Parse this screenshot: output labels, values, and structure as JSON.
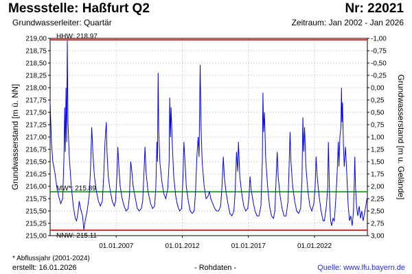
{
  "header": {
    "title": "Messstelle: Haßfurt Q2",
    "nr": "Nr: 22021",
    "subtitle": "Grundwasserleiter: Quartär",
    "period": "Zeitraum: Jan 2002 - Jan 2026"
  },
  "footer": {
    "footnote": "* Abflussjahr (2001-2024)",
    "created": "erstellt:  16.01.2026",
    "rawdata": "- Rohdaten -",
    "source": "Quelle: www.lfu.bayern.de"
  },
  "colors": {
    "series": "#0000ee",
    "hhw": "#e00000",
    "nnw": "#e00000",
    "mw": "#00a000",
    "grid": "#c8c8c8"
  },
  "chart_data": {
    "type": "line",
    "ylabel_left": "Grundwasserstand [m ü. NN]",
    "ylabel_right": "Grundwasserstand [m u. Gelände]",
    "ylim": [
      215.0,
      219.0
    ],
    "yticks": [
      "219,00",
      "218,75",
      "218,50",
      "218,25",
      "218,00",
      "217,75",
      "217,50",
      "217,25",
      "217,00",
      "216,75",
      "216,50",
      "216,25",
      "216,00",
      "215,75",
      "215,50",
      "215,25",
      "215,00"
    ],
    "yticks_right": [
      "-1,00",
      "-0,75",
      "-0,50",
      "-0,25",
      "0,00",
      "0,25",
      "0,50",
      "0,75",
      "1,00",
      "1,25",
      "1,50",
      "1,75",
      "2,00",
      "2,25",
      "2,50",
      "2,75",
      "3,00"
    ],
    "xlim": [
      2002.0,
      2026.0
    ],
    "xticks": [
      {
        "label": "01.01.2007",
        "x": 2007.0
      },
      {
        "label": "01.01.2012",
        "x": 2012.0
      },
      {
        "label": "01.01.2017",
        "x": 2017.0
      },
      {
        "label": "01.01.2022",
        "x": 2022.0
      }
    ],
    "grid": true,
    "reference_lines": [
      {
        "key": "hhw",
        "label": "HHW: 218.97",
        "value": 218.97
      },
      {
        "key": "mw",
        "label": "MW*: 215.89",
        "value": 215.89
      },
      {
        "key": "nnw",
        "label": "NNW: 215.11",
        "value": 215.11
      }
    ],
    "series": [
      {
        "values": [
          [
            2002.0,
            217.7
          ],
          [
            2002.1,
            216.9
          ],
          [
            2002.2,
            216.5
          ],
          [
            2002.35,
            216.3
          ],
          [
            2002.5,
            216.0
          ],
          [
            2002.65,
            215.8
          ],
          [
            2002.8,
            215.65
          ],
          [
            2002.95,
            215.75
          ],
          [
            2003.05,
            216.6
          ],
          [
            2003.1,
            217.6
          ],
          [
            2003.15,
            216.7
          ],
          [
            2003.2,
            218.0
          ],
          [
            2003.25,
            216.9
          ],
          [
            2003.3,
            218.96
          ],
          [
            2003.35,
            217.3
          ],
          [
            2003.45,
            216.6
          ],
          [
            2003.6,
            216.0
          ],
          [
            2003.75,
            215.6
          ],
          [
            2003.9,
            215.35
          ],
          [
            2004.0,
            215.3
          ],
          [
            2004.1,
            215.45
          ],
          [
            2004.2,
            215.7
          ],
          [
            2004.3,
            215.55
          ],
          [
            2004.45,
            215.4
          ],
          [
            2004.55,
            215.12
          ],
          [
            2004.65,
            215.3
          ],
          [
            2004.8,
            215.5
          ],
          [
            2004.95,
            215.8
          ],
          [
            2005.05,
            216.3
          ],
          [
            2005.15,
            217.2
          ],
          [
            2005.25,
            216.6
          ],
          [
            2005.35,
            216.2
          ],
          [
            2005.5,
            215.9
          ],
          [
            2005.65,
            215.7
          ],
          [
            2005.8,
            215.6
          ],
          [
            2005.95,
            215.7
          ],
          [
            2006.05,
            216.2
          ],
          [
            2006.15,
            216.9
          ],
          [
            2006.25,
            217.3
          ],
          [
            2006.3,
            216.7
          ],
          [
            2006.4,
            216.2
          ],
          [
            2006.55,
            215.9
          ],
          [
            2006.7,
            215.7
          ],
          [
            2006.85,
            215.6
          ],
          [
            2006.95,
            215.7
          ],
          [
            2007.05,
            216.2
          ],
          [
            2007.12,
            216.8
          ],
          [
            2007.2,
            216.4
          ],
          [
            2007.3,
            216.0
          ],
          [
            2007.45,
            215.75
          ],
          [
            2007.6,
            215.6
          ],
          [
            2007.75,
            215.5
          ],
          [
            2007.9,
            215.55
          ],
          [
            2008.0,
            215.8
          ],
          [
            2008.1,
            216.5
          ],
          [
            2008.18,
            216.3
          ],
          [
            2008.28,
            216.0
          ],
          [
            2008.45,
            215.75
          ],
          [
            2008.6,
            215.55
          ],
          [
            2008.75,
            215.5
          ],
          [
            2008.9,
            215.55
          ],
          [
            2009.0,
            215.7
          ],
          [
            2009.1,
            216.3
          ],
          [
            2009.18,
            216.8
          ],
          [
            2009.25,
            216.3
          ],
          [
            2009.4,
            215.9
          ],
          [
            2009.6,
            215.65
          ],
          [
            2009.75,
            215.55
          ],
          [
            2009.9,
            215.6
          ],
          [
            2010.0,
            216.0
          ],
          [
            2010.08,
            216.9
          ],
          [
            2010.12,
            216.5
          ],
          [
            2010.17,
            218.3
          ],
          [
            2010.22,
            217.1
          ],
          [
            2010.3,
            216.5
          ],
          [
            2010.45,
            216.1
          ],
          [
            2010.6,
            215.85
          ],
          [
            2010.75,
            215.75
          ],
          [
            2010.9,
            215.95
          ],
          [
            2011.0,
            216.5
          ],
          [
            2011.05,
            217.8
          ],
          [
            2011.1,
            217.0
          ],
          [
            2011.15,
            217.6
          ],
          [
            2011.25,
            216.8
          ],
          [
            2011.35,
            216.2
          ],
          [
            2011.5,
            215.8
          ],
          [
            2011.65,
            215.6
          ],
          [
            2011.8,
            215.5
          ],
          [
            2011.95,
            215.55
          ],
          [
            2012.05,
            216.2
          ],
          [
            2012.12,
            216.9
          ],
          [
            2012.2,
            216.5
          ],
          [
            2012.3,
            216.0
          ],
          [
            2012.45,
            215.7
          ],
          [
            2012.6,
            215.5
          ],
          [
            2012.75,
            215.45
          ],
          [
            2012.9,
            215.5
          ],
          [
            2013.0,
            215.9
          ],
          [
            2013.1,
            216.6
          ],
          [
            2013.2,
            217.0
          ],
          [
            2013.27,
            216.6
          ],
          [
            2013.35,
            218.46
          ],
          [
            2013.42,
            217.2
          ],
          [
            2013.5,
            216.5
          ],
          [
            2013.65,
            216.0
          ],
          [
            2013.8,
            215.75
          ],
          [
            2013.95,
            215.8
          ],
          [
            2014.05,
            215.9
          ],
          [
            2014.15,
            215.75
          ],
          [
            2014.3,
            215.65
          ],
          [
            2014.45,
            215.55
          ],
          [
            2014.6,
            215.5
          ],
          [
            2014.75,
            215.5
          ],
          [
            2014.9,
            215.6
          ],
          [
            2015.0,
            216.0
          ],
          [
            2015.1,
            216.6
          ],
          [
            2015.18,
            216.2
          ],
          [
            2015.3,
            215.9
          ],
          [
            2015.45,
            215.65
          ],
          [
            2015.6,
            215.45
          ],
          [
            2015.75,
            215.4
          ],
          [
            2015.9,
            215.5
          ],
          [
            2016.0,
            215.9
          ],
          [
            2016.1,
            216.7
          ],
          [
            2016.18,
            216.3
          ],
          [
            2016.25,
            216.9
          ],
          [
            2016.35,
            216.2
          ],
          [
            2016.5,
            215.85
          ],
          [
            2016.65,
            215.6
          ],
          [
            2016.8,
            215.5
          ],
          [
            2016.95,
            215.55
          ],
          [
            2017.05,
            215.8
          ],
          [
            2017.12,
            216.2
          ],
          [
            2017.2,
            215.95
          ],
          [
            2017.35,
            215.7
          ],
          [
            2017.5,
            215.5
          ],
          [
            2017.65,
            215.4
          ],
          [
            2017.8,
            215.4
          ],
          [
            2017.95,
            215.6
          ],
          [
            2018.05,
            216.5
          ],
          [
            2018.1,
            217.9
          ],
          [
            2018.15,
            217.1
          ],
          [
            2018.22,
            217.5
          ],
          [
            2018.3,
            216.6
          ],
          [
            2018.45,
            216.0
          ],
          [
            2018.6,
            215.6
          ],
          [
            2018.75,
            215.4
          ],
          [
            2018.9,
            215.35
          ],
          [
            2019.0,
            215.5
          ],
          [
            2019.1,
            216.2
          ],
          [
            2019.18,
            216.7
          ],
          [
            2019.25,
            216.2
          ],
          [
            2019.4,
            215.8
          ],
          [
            2019.55,
            215.55
          ],
          [
            2019.7,
            215.4
          ],
          [
            2019.85,
            215.4
          ],
          [
            2020.0,
            215.7
          ],
          [
            2020.08,
            216.4
          ],
          [
            2020.15,
            217.1
          ],
          [
            2020.22,
            216.5
          ],
          [
            2020.35,
            216.0
          ],
          [
            2020.5,
            215.7
          ],
          [
            2020.65,
            215.5
          ],
          [
            2020.8,
            215.45
          ],
          [
            2020.95,
            215.55
          ],
          [
            2021.05,
            216.1
          ],
          [
            2021.12,
            217.4
          ],
          [
            2021.18,
            216.7
          ],
          [
            2021.25,
            217.2
          ],
          [
            2021.35,
            216.4
          ],
          [
            2021.5,
            215.9
          ],
          [
            2021.65,
            215.6
          ],
          [
            2021.8,
            215.5
          ],
          [
            2021.95,
            215.65
          ],
          [
            2022.05,
            216.0
          ],
          [
            2022.12,
            216.6
          ],
          [
            2022.2,
            216.2
          ],
          [
            2022.35,
            215.8
          ],
          [
            2022.5,
            215.5
          ],
          [
            2022.65,
            215.3
          ],
          [
            2022.75,
            215.3
          ],
          [
            2022.9,
            215.6
          ],
          [
            2023.0,
            216.0
          ],
          [
            2023.05,
            216.9
          ],
          [
            2023.1,
            216.3
          ],
          [
            2023.15,
            215.7
          ],
          [
            2023.22,
            215.3
          ],
          [
            2023.3,
            215.2
          ],
          [
            2023.4,
            215.35
          ],
          [
            2023.5,
            215.3
          ],
          [
            2023.6,
            215.7
          ],
          [
            2023.72,
            216.3
          ],
          [
            2023.8,
            216.9
          ],
          [
            2023.85,
            216.4
          ],
          [
            2023.92,
            217.0
          ],
          [
            2024.0,
            217.2
          ],
          [
            2024.04,
            218.0
          ],
          [
            2024.08,
            217.3
          ],
          [
            2024.12,
            217.7
          ],
          [
            2024.18,
            216.9
          ],
          [
            2024.25,
            216.4
          ],
          [
            2024.35,
            216.8
          ],
          [
            2024.45,
            216.2
          ],
          [
            2024.55,
            215.6
          ],
          [
            2024.65,
            215.3
          ],
          [
            2024.75,
            215.4
          ],
          [
            2024.85,
            215.2
          ],
          [
            2024.95,
            215.5
          ],
          [
            2025.0,
            216.0
          ],
          [
            2025.05,
            216.6
          ],
          [
            2025.1,
            216.0
          ],
          [
            2025.18,
            215.6
          ],
          [
            2025.28,
            215.4
          ],
          [
            2025.38,
            215.6
          ],
          [
            2025.48,
            215.35
          ],
          [
            2025.58,
            215.5
          ],
          [
            2025.68,
            215.3
          ],
          [
            2025.78,
            215.45
          ],
          [
            2025.88,
            215.6
          ],
          [
            2025.97,
            215.75
          ]
        ]
      }
    ]
  }
}
